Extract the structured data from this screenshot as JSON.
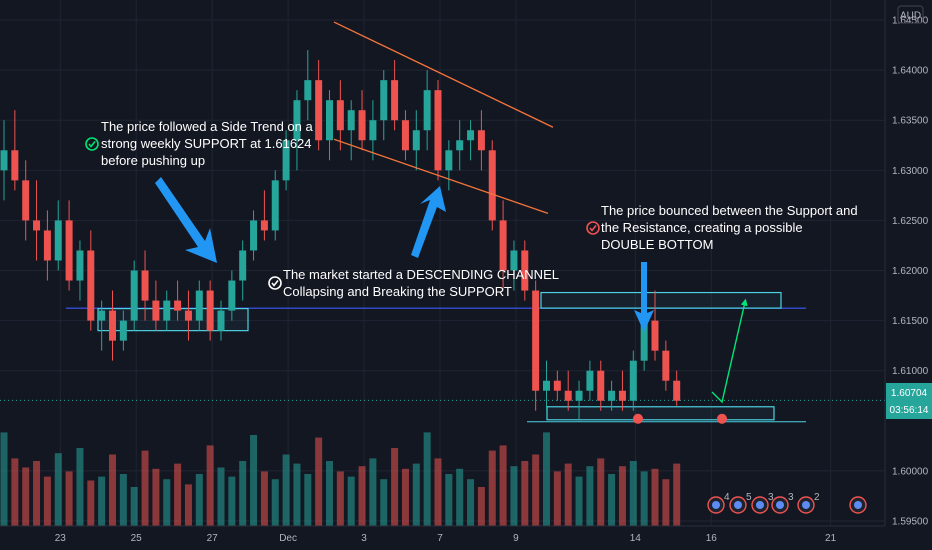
{
  "currency": "AUD",
  "colors": {
    "background": "#131722",
    "up": "#26a69a",
    "down": "#ef5350",
    "grid": "#1f2533",
    "support_line": "#3d5afe",
    "channel_line": "#f4743b",
    "box": "#4dd0e1",
    "arrow": "#2196f3",
    "projection": "#00e676",
    "price_badge": "#26a69a"
  },
  "icons": [
    "check-circle-icon",
    "check-circle-white-icon",
    "check-circle-red-icon",
    "event-bubble-icon"
  ],
  "price_badge": {
    "price": "1.60704",
    "countdown": "03:56:14"
  },
  "annotations": {
    "side_trend": [
      "The price followed a Side Trend on a",
      "strong weekly SUPPORT at 1.61624",
      "before pushing up"
    ],
    "channel": [
      "The market started a DESCENDING CHANNEL",
      "Collapsing and Breaking the SUPPORT"
    ],
    "double_bottom": [
      "The price bounced between the Support and",
      "the Resistance, creating a possible",
      "DOUBLE BOTTOM"
    ]
  },
  "events": [
    "4",
    "5",
    "3",
    "3",
    "2"
  ],
  "chart_data": {
    "type": "candlestick",
    "ylim": [
      1.5945,
      1.647
    ],
    "yticks": [
      "1.64500",
      "1.64000",
      "1.63500",
      "1.63000",
      "1.62500",
      "1.62000",
      "1.61500",
      "1.61000",
      "1.60000",
      "1.59500"
    ],
    "xticks": [
      {
        "label": "23",
        "bar": 5
      },
      {
        "label": "25",
        "bar": 12
      },
      {
        "label": "27",
        "bar": 19
      },
      {
        "label": "Dec",
        "bar": 26
      },
      {
        "label": "3",
        "bar": 33
      },
      {
        "label": "7",
        "bar": 40
      },
      {
        "label": "9",
        "bar": 47
      },
      {
        "label": "14",
        "bar": 58
      },
      {
        "label": "16",
        "bar": 65
      },
      {
        "label": "21",
        "bar": 76
      }
    ],
    "support_level": 1.61624,
    "last_price": 1.60704,
    "ohlc": [
      [
        1.63,
        1.635,
        1.627,
        1.632
      ],
      [
        1.632,
        1.636,
        1.628,
        1.629
      ],
      [
        1.629,
        1.631,
        1.623,
        1.625
      ],
      [
        1.625,
        1.629,
        1.621,
        1.624
      ],
      [
        1.624,
        1.626,
        1.619,
        1.621
      ],
      [
        1.621,
        1.627,
        1.62,
        1.625
      ],
      [
        1.625,
        1.627,
        1.618,
        1.619
      ],
      [
        1.619,
        1.623,
        1.617,
        1.622
      ],
      [
        1.622,
        1.624,
        1.614,
        1.615
      ],
      [
        1.615,
        1.617,
        1.612,
        1.616
      ],
      [
        1.616,
        1.618,
        1.611,
        1.613
      ],
      [
        1.613,
        1.616,
        1.612,
        1.615
      ],
      [
        1.615,
        1.621,
        1.614,
        1.62
      ],
      [
        1.62,
        1.622,
        1.615,
        1.617
      ],
      [
        1.617,
        1.619,
        1.614,
        1.615
      ],
      [
        1.615,
        1.618,
        1.614,
        1.617
      ],
      [
        1.617,
        1.619,
        1.615,
        1.616
      ],
      [
        1.616,
        1.618,
        1.613,
        1.615
      ],
      [
        1.615,
        1.619,
        1.614,
        1.618
      ],
      [
        1.618,
        1.619,
        1.613,
        1.614
      ],
      [
        1.614,
        1.617,
        1.613,
        1.616
      ],
      [
        1.616,
        1.62,
        1.615,
        1.619
      ],
      [
        1.619,
        1.623,
        1.617,
        1.622
      ],
      [
        1.622,
        1.626,
        1.621,
        1.625
      ],
      [
        1.625,
        1.628,
        1.623,
        1.624
      ],
      [
        1.624,
        1.63,
        1.623,
        1.629
      ],
      [
        1.629,
        1.634,
        1.628,
        1.633
      ],
      [
        1.633,
        1.638,
        1.63,
        1.637
      ],
      [
        1.637,
        1.642,
        1.635,
        1.639
      ],
      [
        1.639,
        1.641,
        1.632,
        1.633
      ],
      [
        1.633,
        1.638,
        1.631,
        1.637
      ],
      [
        1.637,
        1.639,
        1.632,
        1.634
      ],
      [
        1.634,
        1.637,
        1.631,
        1.636
      ],
      [
        1.636,
        1.638,
        1.632,
        1.633
      ],
      [
        1.633,
        1.637,
        1.631,
        1.635
      ],
      [
        1.635,
        1.64,
        1.633,
        1.639
      ],
      [
        1.639,
        1.641,
        1.634,
        1.635
      ],
      [
        1.635,
        1.636,
        1.631,
        1.632
      ],
      [
        1.632,
        1.636,
        1.63,
        1.634
      ],
      [
        1.634,
        1.64,
        1.632,
        1.638
      ],
      [
        1.638,
        1.639,
        1.629,
        1.63
      ],
      [
        1.63,
        1.633,
        1.628,
        1.632
      ],
      [
        1.632,
        1.635,
        1.63,
        1.633
      ],
      [
        1.633,
        1.635,
        1.631,
        1.634
      ],
      [
        1.634,
        1.636,
        1.63,
        1.632
      ],
      [
        1.632,
        1.633,
        1.624,
        1.625
      ],
      [
        1.625,
        1.627,
        1.618,
        1.62
      ],
      [
        1.62,
        1.623,
        1.618,
        1.622
      ],
      [
        1.622,
        1.623,
        1.617,
        1.618
      ],
      [
        1.618,
        1.619,
        1.606,
        1.608
      ],
      [
        1.608,
        1.611,
        1.606,
        1.609
      ],
      [
        1.609,
        1.61,
        1.607,
        1.608
      ],
      [
        1.608,
        1.61,
        1.606,
        1.607
      ],
      [
        1.607,
        1.609,
        1.605,
        1.608
      ],
      [
        1.608,
        1.611,
        1.607,
        1.61
      ],
      [
        1.61,
        1.611,
        1.606,
        1.607
      ],
      [
        1.607,
        1.609,
        1.606,
        1.608
      ],
      [
        1.608,
        1.61,
        1.606,
        1.607
      ],
      [
        1.607,
        1.612,
        1.606,
        1.611
      ],
      [
        1.611,
        1.616,
        1.61,
        1.615
      ],
      [
        1.615,
        1.618,
        1.611,
        1.612
      ],
      [
        1.612,
        1.613,
        1.608,
        1.609
      ],
      [
        1.609,
        1.61,
        1.6065,
        1.607
      ]
    ],
    "volume": [
      0.72,
      0.52,
      0.45,
      0.5,
      0.38,
      0.56,
      0.42,
      0.6,
      0.35,
      0.38,
      0.55,
      0.4,
      0.3,
      0.58,
      0.44,
      0.36,
      0.48,
      0.32,
      0.4,
      0.62,
      0.45,
      0.38,
      0.5,
      0.7,
      0.42,
      0.36,
      0.55,
      0.48,
      0.4,
      0.68,
      0.5,
      0.42,
      0.38,
      0.46,
      0.52,
      0.36,
      0.6,
      0.44,
      0.48,
      0.72,
      0.52,
      0.4,
      0.44,
      0.36,
      0.3,
      0.58,
      0.62,
      0.46,
      0.5,
      0.55,
      0.72,
      0.42,
      0.48,
      0.38,
      0.46,
      0.52,
      0.4,
      0.46,
      0.5,
      0.42,
      0.44,
      0.36,
      0.48
    ]
  }
}
